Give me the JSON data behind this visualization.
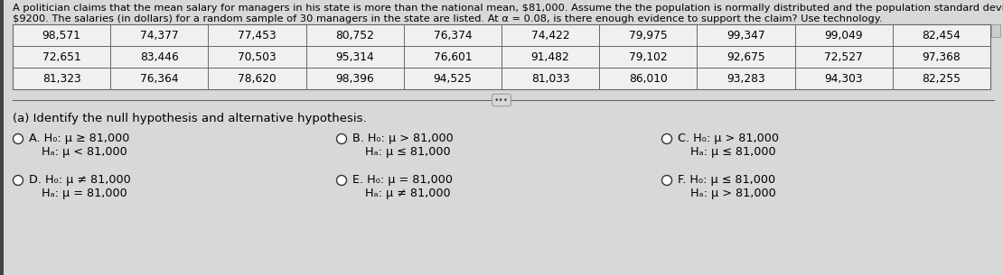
{
  "header_line1": "A politician claims that the mean salary for managers in his state is more than the national mean, $81,000. Assume the the population is normally distributed and the population standard deviation is",
  "header_line2": "$9200. The salaries (in dollars) for a random sample of 30 managers in the state are listed. At α = 0.08, is there enough evidence to support the claim? Use technology.",
  "table_data": [
    [
      "98,571",
      "74,377",
      "77,453",
      "80,752",
      "76,374",
      "74,422",
      "79,975",
      "99,347",
      "99,049",
      "82,454"
    ],
    [
      "72,651",
      "83,446",
      "70,503",
      "95,314",
      "76,601",
      "91,482",
      "79,102",
      "92,675",
      "72,527",
      "97,368"
    ],
    [
      "81,323",
      "76,364",
      "78,620",
      "98,396",
      "94,525",
      "81,033",
      "86,010",
      "93,283",
      "94,303",
      "82,255"
    ]
  ],
  "part_a_label": "(a) Identify the null hypothesis and alternative hypothesis.",
  "options": [
    {
      "label": "A.",
      "h0": "H₀: μ ≥ 81,000",
      "ha": "Hₐ: μ < 81,000",
      "col": 0,
      "row": 0
    },
    {
      "label": "B.",
      "h0": "H₀: μ > 81,000",
      "ha": "Hₐ: μ ≤ 81,000",
      "col": 1,
      "row": 0
    },
    {
      "label": "C.",
      "h0": "H₀: μ > 81,000",
      "ha": "Hₐ: μ ≤ 81,000",
      "col": 2,
      "row": 0
    },
    {
      "label": "D.",
      "h0": "H₀: μ ≠ 81,000",
      "ha": "Hₐ: μ = 81,000",
      "col": 0,
      "row": 1
    },
    {
      "label": "E.",
      "h0": "H₀: μ = 81,000",
      "ha": "Hₐ: μ ≠ 81,000",
      "col": 1,
      "row": 1
    },
    {
      "label": "F.",
      "h0": "H₀: μ ≤ 81,000",
      "ha": "Hₐ: μ > 81,000",
      "col": 2,
      "row": 1
    }
  ],
  "bg_color": "#d8d8d8",
  "table_bg": "#f0f0f0",
  "text_color": "#000000",
  "header_fontsize": 8.2,
  "table_fontsize": 8.8,
  "option_fontsize": 9.2,
  "label_fontsize": 9.5,
  "line_color": "#666666",
  "left_bar_color": "#444444"
}
